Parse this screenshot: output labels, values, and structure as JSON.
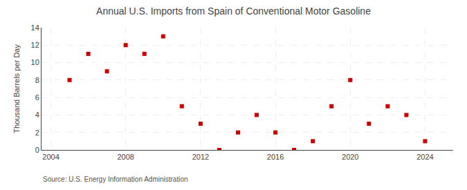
{
  "chart_data": {
    "type": "scatter",
    "title": "Annual U.S. Imports from Spain of Conventional Motor Gasoline",
    "ylabel": "Thousand Barrels per Day",
    "annotations": [
      "Source: U.S. Energy Information Administration"
    ],
    "x": [
      2005,
      2006,
      2007,
      2008,
      2009,
      2010,
      2011,
      2012,
      2013,
      2014,
      2015,
      2016,
      2017,
      2018,
      2019,
      2020,
      2021,
      2022,
      2023,
      2024
    ],
    "values": [
      8,
      11,
      9,
      12,
      11,
      13,
      5,
      3,
      0,
      2,
      4,
      2,
      0,
      1,
      5,
      8,
      3,
      5,
      4,
      1
    ],
    "color": "#cc0000",
    "marker": "square",
    "xlim": [
      2003.5,
      2025.5
    ],
    "xticks": [
      2004,
      2008,
      2012,
      2016,
      2020,
      2024
    ],
    "ylim": [
      0,
      14
    ],
    "yticks": [
      0,
      2,
      4,
      6,
      8,
      10,
      12,
      14
    ],
    "grid": true
  }
}
